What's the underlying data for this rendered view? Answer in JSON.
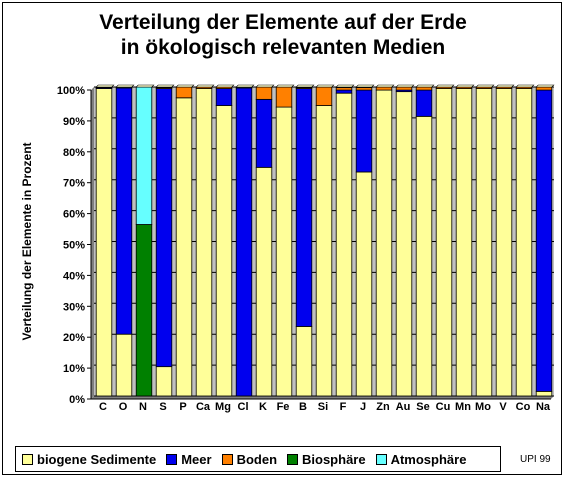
{
  "chart_data": {
    "type": "bar",
    "stacked": true,
    "title": [
      "Verteilung der Elemente auf der Erde",
      "in ökologisch relevanten Medien"
    ],
    "ylabel": "Verteilung der Elemente in Prozent",
    "xlabel": "",
    "ylim": [
      0,
      100
    ],
    "yticks": [
      "0%",
      "10%",
      "20%",
      "30%",
      "40%",
      "50%",
      "60%",
      "70%",
      "80%",
      "90%",
      "100%"
    ],
    "grid": true,
    "legend_position": "bottom",
    "categories": [
      "C",
      "O",
      "N",
      "S",
      "P",
      "Ca",
      "Mg",
      "Cl",
      "K",
      "Fe",
      "B",
      "Si",
      "F",
      "J",
      "Zn",
      "Au",
      "Se",
      "Cu",
      "Mn",
      "Mo",
      "V",
      "Co",
      "Na"
    ],
    "series": [
      {
        "name": "biogene Sedimente",
        "color": "#ffff99",
        "values": [
          99.5,
          20,
          0,
          9.5,
          96.5,
          99.5,
          94,
          0,
          74,
          93.5,
          22.5,
          94,
          98,
          72.5,
          99,
          98.5,
          90.5,
          99.5,
          99.5,
          99.5,
          99.5,
          99.5,
          1.5
        ]
      },
      {
        "name": "Meer",
        "color": "#0000ee",
        "values": [
          0.3,
          79.7,
          0,
          90,
          0,
          0,
          5.5,
          99.7,
          22,
          0,
          77,
          0,
          1,
          26.5,
          0,
          0.5,
          8.5,
          0,
          0,
          0,
          0,
          0,
          97.5
        ]
      },
      {
        "name": "Boden",
        "color": "#ff8000",
        "values": [
          0.1,
          0,
          0,
          0.3,
          3.5,
          0.5,
          0.5,
          0,
          4,
          6.5,
          0.3,
          6,
          0.8,
          0.8,
          1,
          1,
          1,
          0.5,
          0.5,
          0.5,
          0.5,
          0.5,
          1
        ]
      },
      {
        "name": "Biosphäre",
        "color": "#008000",
        "values": [
          0,
          0,
          55.5,
          0,
          0,
          0,
          0,
          0,
          0,
          0,
          0,
          0,
          0,
          0,
          0,
          0,
          0,
          0,
          0,
          0,
          0,
          0,
          0
        ]
      },
      {
        "name": "Atmosphäre",
        "color": "#66ffff",
        "values": [
          0.1,
          0.3,
          44.5,
          0.2,
          0,
          0,
          0,
          0.3,
          0,
          0,
          0.2,
          0,
          0.2,
          0.2,
          0,
          0,
          0,
          0,
          0,
          0,
          0,
          0,
          0
        ]
      }
    ]
  },
  "credit": "UPI 99"
}
